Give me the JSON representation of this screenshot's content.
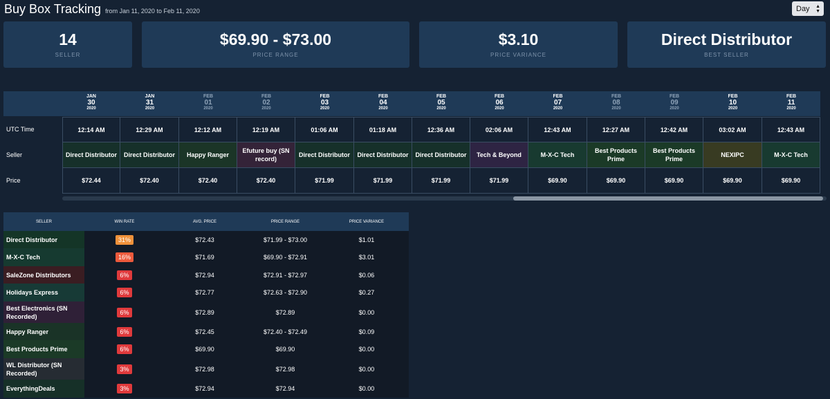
{
  "header": {
    "title": "Buy Box Tracking",
    "subtitle": "from Jan 11, 2020 to Feb 11, 2020"
  },
  "period_select": {
    "value": "Day"
  },
  "stats": [
    {
      "value": "14",
      "label": "SELLER"
    },
    {
      "value": "$69.90 - $73.00",
      "label": "PRICE RANGE"
    },
    {
      "value": "$3.10",
      "label": "PRICE VARIANCE"
    },
    {
      "value": "Direct Distributor",
      "label": "BEST SELLER"
    }
  ],
  "timeline": {
    "row_labels": [
      "UTC Time",
      "Seller",
      "Price"
    ],
    "days": [
      {
        "month": "JAN",
        "day": "30",
        "year": "2020",
        "dim": false,
        "time": "12:14 AM",
        "seller": "Direct Distributor",
        "price": "$72.44",
        "color": "#16302a"
      },
      {
        "month": "JAN",
        "day": "31",
        "year": "2020",
        "dim": false,
        "time": "12:29 AM",
        "seller": "Direct Distributor",
        "price": "$72.40",
        "color": "#16302a"
      },
      {
        "month": "FEB",
        "day": "01",
        "year": "2020",
        "dim": true,
        "time": "12:12 AM",
        "seller": "Happy Ranger",
        "price": "$72.40",
        "color": "#1b3527"
      },
      {
        "month": "FEB",
        "day": "02",
        "year": "2020",
        "dim": true,
        "time": "12:19 AM",
        "seller": "Efuture buy (SN record)",
        "price": "$72.40",
        "color": "#342338"
      },
      {
        "month": "FEB",
        "day": "03",
        "year": "2020",
        "dim": false,
        "time": "01:06 AM",
        "seller": "Direct Distributor",
        "price": "$71.99",
        "color": "#16302a"
      },
      {
        "month": "FEB",
        "day": "04",
        "year": "2020",
        "dim": false,
        "time": "01:18 AM",
        "seller": "Direct Distributor",
        "price": "$71.99",
        "color": "#16302a"
      },
      {
        "month": "FEB",
        "day": "05",
        "year": "2020",
        "dim": false,
        "time": "12:36 AM",
        "seller": "Direct Distributor",
        "price": "$71.99",
        "color": "#16302a"
      },
      {
        "month": "FEB",
        "day": "06",
        "year": "2020",
        "dim": false,
        "time": "02:06 AM",
        "seller": "Tech & Beyond",
        "price": "$71.99",
        "color": "#2e2443"
      },
      {
        "month": "FEB",
        "day": "07",
        "year": "2020",
        "dim": false,
        "time": "12:43 AM",
        "seller": "M-X-C Tech",
        "price": "$69.90",
        "color": "#183a30"
      },
      {
        "month": "FEB",
        "day": "08",
        "year": "2020",
        "dim": true,
        "time": "12:27 AM",
        "seller": "Best Products Prime",
        "price": "$69.90",
        "color": "#1b3a27"
      },
      {
        "month": "FEB",
        "day": "09",
        "year": "2020",
        "dim": true,
        "time": "12:42 AM",
        "seller": "Best Products Prime",
        "price": "$69.90",
        "color": "#1b3a27"
      },
      {
        "month": "FEB",
        "day": "10",
        "year": "2020",
        "dim": false,
        "time": "03:02 AM",
        "seller": "NEXIPC",
        "price": "$69.90",
        "color": "#383b22"
      },
      {
        "month": "FEB",
        "day": "11",
        "year": "2020",
        "dim": false,
        "time": "12:43 AM",
        "seller": "M-X-C Tech",
        "price": "$69.90",
        "color": "#183a30"
      }
    ]
  },
  "sellers_table": {
    "headers": [
      "SELLER",
      "WIN RATE",
      "AVG. PRICE",
      "PRICE RANGE",
      "PRICE VARIANCE"
    ],
    "rows": [
      {
        "seller": "Direct Distributor",
        "win_rate": "31%",
        "avg_price": "$72.43",
        "price_range": "$71.99 - $73.00",
        "variance": "$1.01",
        "badge_color": "#f0913a",
        "name_bg": "#143527"
      },
      {
        "seller": "M-X-C Tech",
        "win_rate": "16%",
        "avg_price": "$71.69",
        "price_range": "$69.90 - $72.91",
        "variance": "$3.01",
        "badge_color": "#ec5a3c",
        "name_bg": "#163a30"
      },
      {
        "seller": "SaleZone Distributors",
        "win_rate": "6%",
        "avg_price": "$72.94",
        "price_range": "$72.91 - $72.97",
        "variance": "$0.06",
        "badge_color": "#e03a3c",
        "name_bg": "#3a1d22"
      },
      {
        "seller": "Holidays Express",
        "win_rate": "6%",
        "avg_price": "$72.77",
        "price_range": "$72.63 - $72.90",
        "variance": "$0.27",
        "badge_color": "#e03a3c",
        "name_bg": "#173a36"
      },
      {
        "seller": "Best Electronics (SN Recorded)",
        "win_rate": "6%",
        "avg_price": "$72.89",
        "price_range": "$72.89",
        "variance": "$0.00",
        "badge_color": "#e03a3c",
        "name_bg": "#2f2037"
      },
      {
        "seller": "Happy Ranger",
        "win_rate": "6%",
        "avg_price": "$72.45",
        "price_range": "$72.40 - $72.49",
        "variance": "$0.09",
        "badge_color": "#e03a3c",
        "name_bg": "#1a3327"
      },
      {
        "seller": "Best Products Prime",
        "win_rate": "6%",
        "avg_price": "$69.90",
        "price_range": "$69.90",
        "variance": "$0.00",
        "badge_color": "#e03a3c",
        "name_bg": "#1b3a27"
      },
      {
        "seller": "WL Distributor (SN Recorded)",
        "win_rate": "3%",
        "avg_price": "$72.98",
        "price_range": "$72.98",
        "variance": "$0.00",
        "badge_color": "#e03a3c",
        "name_bg": "#262c33"
      },
      {
        "seller": "EverythingDeals",
        "win_rate": "3%",
        "avg_price": "$72.94",
        "price_range": "$72.94",
        "variance": "$0.00",
        "badge_color": "#e03a3c",
        "name_bg": "#163028"
      }
    ]
  }
}
